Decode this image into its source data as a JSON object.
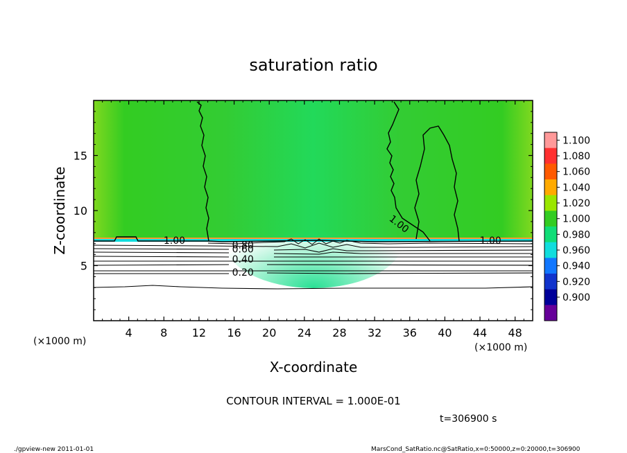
{
  "chart_data": {
    "type": "heatmap",
    "title": "saturation ratio",
    "xlabel": "X-coordinate",
    "ylabel": "Z-coordinate",
    "x_unit": "(×1000 m)",
    "z_unit": "(×1000 m)",
    "xlim": [
      0,
      50
    ],
    "ylim": [
      0,
      20
    ],
    "x_ticks": [
      4,
      8,
      12,
      16,
      20,
      24,
      28,
      32,
      36,
      40,
      44,
      48
    ],
    "y_ticks": [
      5,
      10,
      15
    ],
    "colorbar": {
      "levels": [
        "1.100",
        "1.080",
        "1.060",
        "1.040",
        "1.020",
        "1.000",
        "0.980",
        "0.960",
        "0.940",
        "0.920",
        "0.900"
      ],
      "colors": [
        "#ff9999",
        "#ff3030",
        "#ff5a00",
        "#ffaa00",
        "#9ae600",
        "#33cc22",
        "#11dd77",
        "#11dddd",
        "#1177ff",
        "#1133cc",
        "#000099",
        "#660099"
      ]
    },
    "contour_labels": [
      {
        "text": "1.00",
        "x": 9.2,
        "z": 7.3
      },
      {
        "text": "1.00",
        "x": 45.2,
        "z": 7.3
      },
      {
        "text": "1.00",
        "x": 34.8,
        "z": 8.8
      },
      {
        "text": "0.80",
        "x": 17.0,
        "z": 6.9
      },
      {
        "text": "0.60",
        "x": 17.0,
        "z": 6.5
      },
      {
        "text": "0.40",
        "x": 17.0,
        "z": 5.6
      },
      {
        "text": "0.20",
        "x": 17.0,
        "z": 4.4
      }
    ]
  },
  "annotations": {
    "contour_interval": "CONTOUR INTERVAL = 1.000E-01",
    "time": "t=306900 s",
    "footer_left": "./gpview-new   2011-01-01",
    "footer_right": "MarsCond_SatRatio.nc@SatRatio,x=0:50000,z=0:20000,t=306900"
  }
}
